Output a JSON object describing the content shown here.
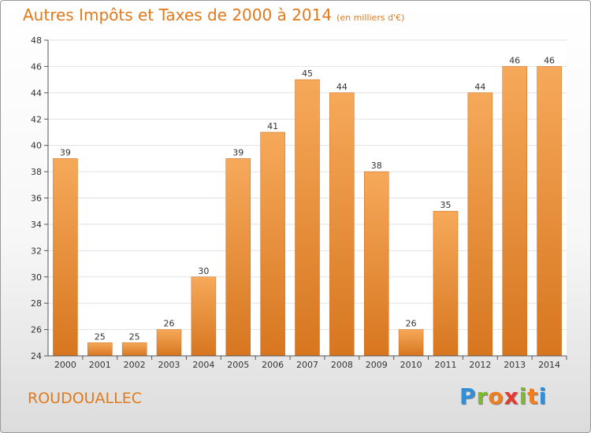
{
  "title": "Autres Impôts et Taxes de 2000 à 2014",
  "subtitle": "(en milliers d'€)",
  "commune": "ROUDOUALLEC",
  "logo": {
    "letters": [
      "P",
      "r",
      "o",
      "x",
      "i",
      "t",
      "i"
    ],
    "colors": [
      "#2f8fd8",
      "#7dbb2c",
      "#f07e1e",
      "#e43b2c",
      "#7dbb2c",
      "#f07e1e",
      "#2f8fd8"
    ]
  },
  "colors": {
    "accent": "#e07a1c",
    "bar_light": "#f6a95a",
    "bar_dark": "#d7761f"
  },
  "chart_data": {
    "type": "bar",
    "categories": [
      "2000",
      "2001",
      "2002",
      "2003",
      "2004",
      "2005",
      "2006",
      "2007",
      "2008",
      "2009",
      "2010",
      "2011",
      "2012",
      "2013",
      "2014"
    ],
    "values": [
      39,
      25,
      25,
      26,
      30,
      39,
      41,
      45,
      44,
      38,
      26,
      35,
      44,
      46,
      46
    ],
    "ylim": [
      24,
      48
    ],
    "yticks": [
      24,
      26,
      28,
      30,
      32,
      34,
      36,
      38,
      40,
      42,
      44,
      46,
      48
    ],
    "grid": true
  }
}
